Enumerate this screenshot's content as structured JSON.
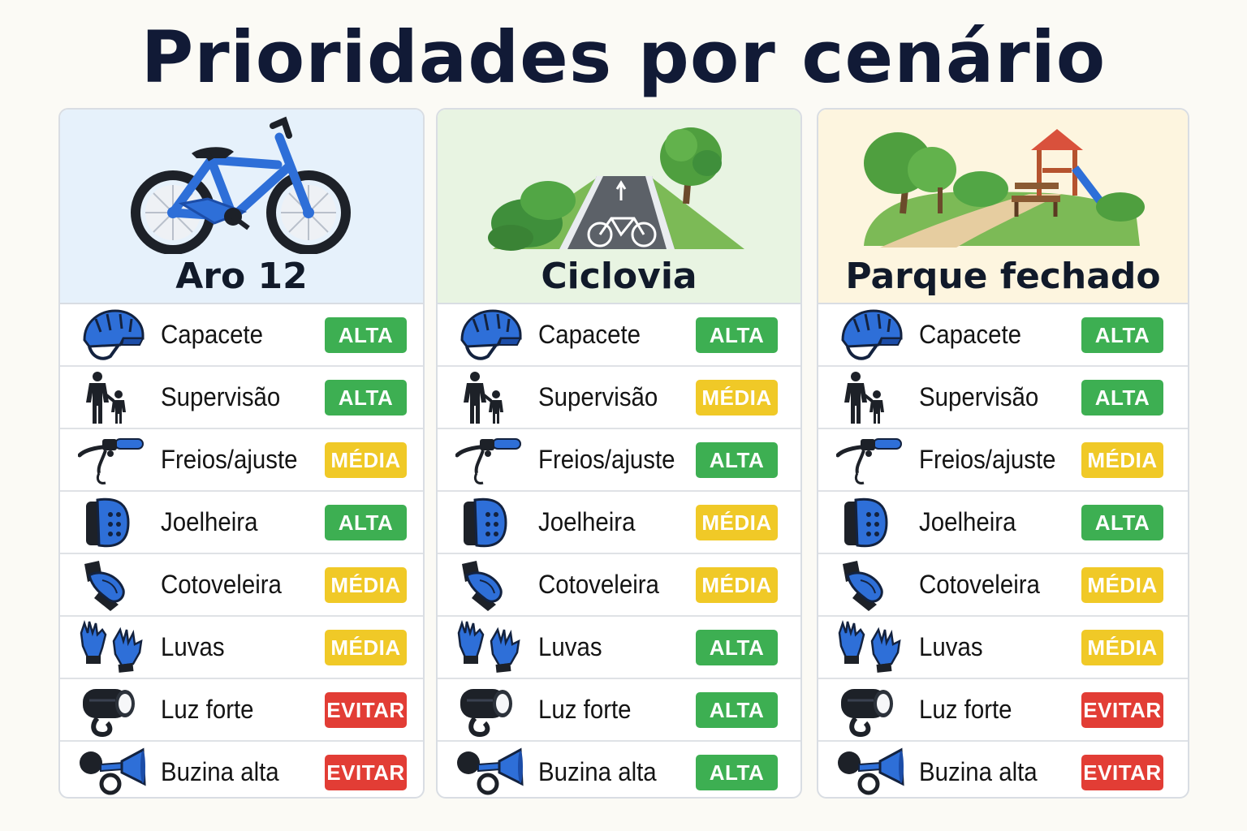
{
  "title": "Prioridades por cenário",
  "colors": {
    "alta": "#3daf52",
    "media": "#f0c927",
    "evitar": "#e23d35",
    "panel1_header": "#e6f1fb",
    "panel2_header": "#e8f4e2",
    "panel3_header": "#fdf5df"
  },
  "panels": [
    {
      "title": "Aro 12",
      "illustration": "kids-bike-icon",
      "rows": [
        {
          "label": "Capacete",
          "badge": "ALTA",
          "level": "alta",
          "icon": "helmet-icon"
        },
        {
          "label": "Supervisão",
          "badge": "ALTA",
          "level": "alta",
          "icon": "adult-child-icon"
        },
        {
          "label": "Freios/ajuste",
          "badge": "MÉDIA",
          "level": "media",
          "icon": "brake-lever-icon"
        },
        {
          "label": "Joelheira",
          "badge": "ALTA",
          "level": "alta",
          "icon": "knee-pad-icon"
        },
        {
          "label": "Cotoveleira",
          "badge": "MÉDIA",
          "level": "media",
          "icon": "elbow-pad-icon"
        },
        {
          "label": "Luvas",
          "badge": "MÉDIA",
          "level": "media",
          "icon": "gloves-icon"
        },
        {
          "label": "Luz forte",
          "badge": "EVITAR",
          "level": "evitar",
          "icon": "bike-light-icon"
        },
        {
          "label": "Buzina alta",
          "badge": "EVITAR",
          "level": "evitar",
          "icon": "horn-icon"
        }
      ]
    },
    {
      "title": "Ciclovia",
      "illustration": "bike-lane-icon",
      "rows": [
        {
          "label": "Capacete",
          "badge": "ALTA",
          "level": "alta",
          "icon": "helmet-icon"
        },
        {
          "label": "Supervisão",
          "badge": "MÉDIA",
          "level": "media",
          "icon": "adult-child-icon"
        },
        {
          "label": "Freios/ajuste",
          "badge": "ALTA",
          "level": "alta",
          "icon": "brake-lever-icon"
        },
        {
          "label": "Joelheira",
          "badge": "MÉDIA",
          "level": "media",
          "icon": "knee-pad-icon"
        },
        {
          "label": "Cotoveleira",
          "badge": "MÉDIA",
          "level": "media",
          "icon": "elbow-pad-icon"
        },
        {
          "label": "Luvas",
          "badge": "ALTA",
          "level": "alta",
          "icon": "gloves-icon"
        },
        {
          "label": "Luz forte",
          "badge": "ALTA",
          "level": "alta",
          "icon": "bike-light-icon"
        },
        {
          "label": "Buzina alta",
          "badge": "ALTA",
          "level": "alta",
          "icon": "horn-icon"
        }
      ]
    },
    {
      "title": "Parque fechado",
      "illustration": "park-playground-icon",
      "rows": [
        {
          "label": "Capacete",
          "badge": "ALTA",
          "level": "alta",
          "icon": "helmet-icon"
        },
        {
          "label": "Supervisão",
          "badge": "ALTA",
          "level": "alta",
          "icon": "adult-child-icon"
        },
        {
          "label": "Freios/ajuste",
          "badge": "MÉDIA",
          "level": "media",
          "icon": "brake-lever-icon"
        },
        {
          "label": "Joelheira",
          "badge": "ALTA",
          "level": "alta",
          "icon": "knee-pad-icon"
        },
        {
          "label": "Cotoveleira",
          "badge": "MÉDIA",
          "level": "media",
          "icon": "elbow-pad-icon"
        },
        {
          "label": "Luvas",
          "badge": "MÉDIA",
          "level": "media",
          "icon": "gloves-icon"
        },
        {
          "label": "Luz forte",
          "badge": "EVITAR",
          "level": "evitar",
          "icon": "bike-light-icon"
        },
        {
          "label": "Buzina alta",
          "badge": "EVITAR",
          "level": "evitar",
          "icon": "horn-icon"
        }
      ]
    }
  ]
}
